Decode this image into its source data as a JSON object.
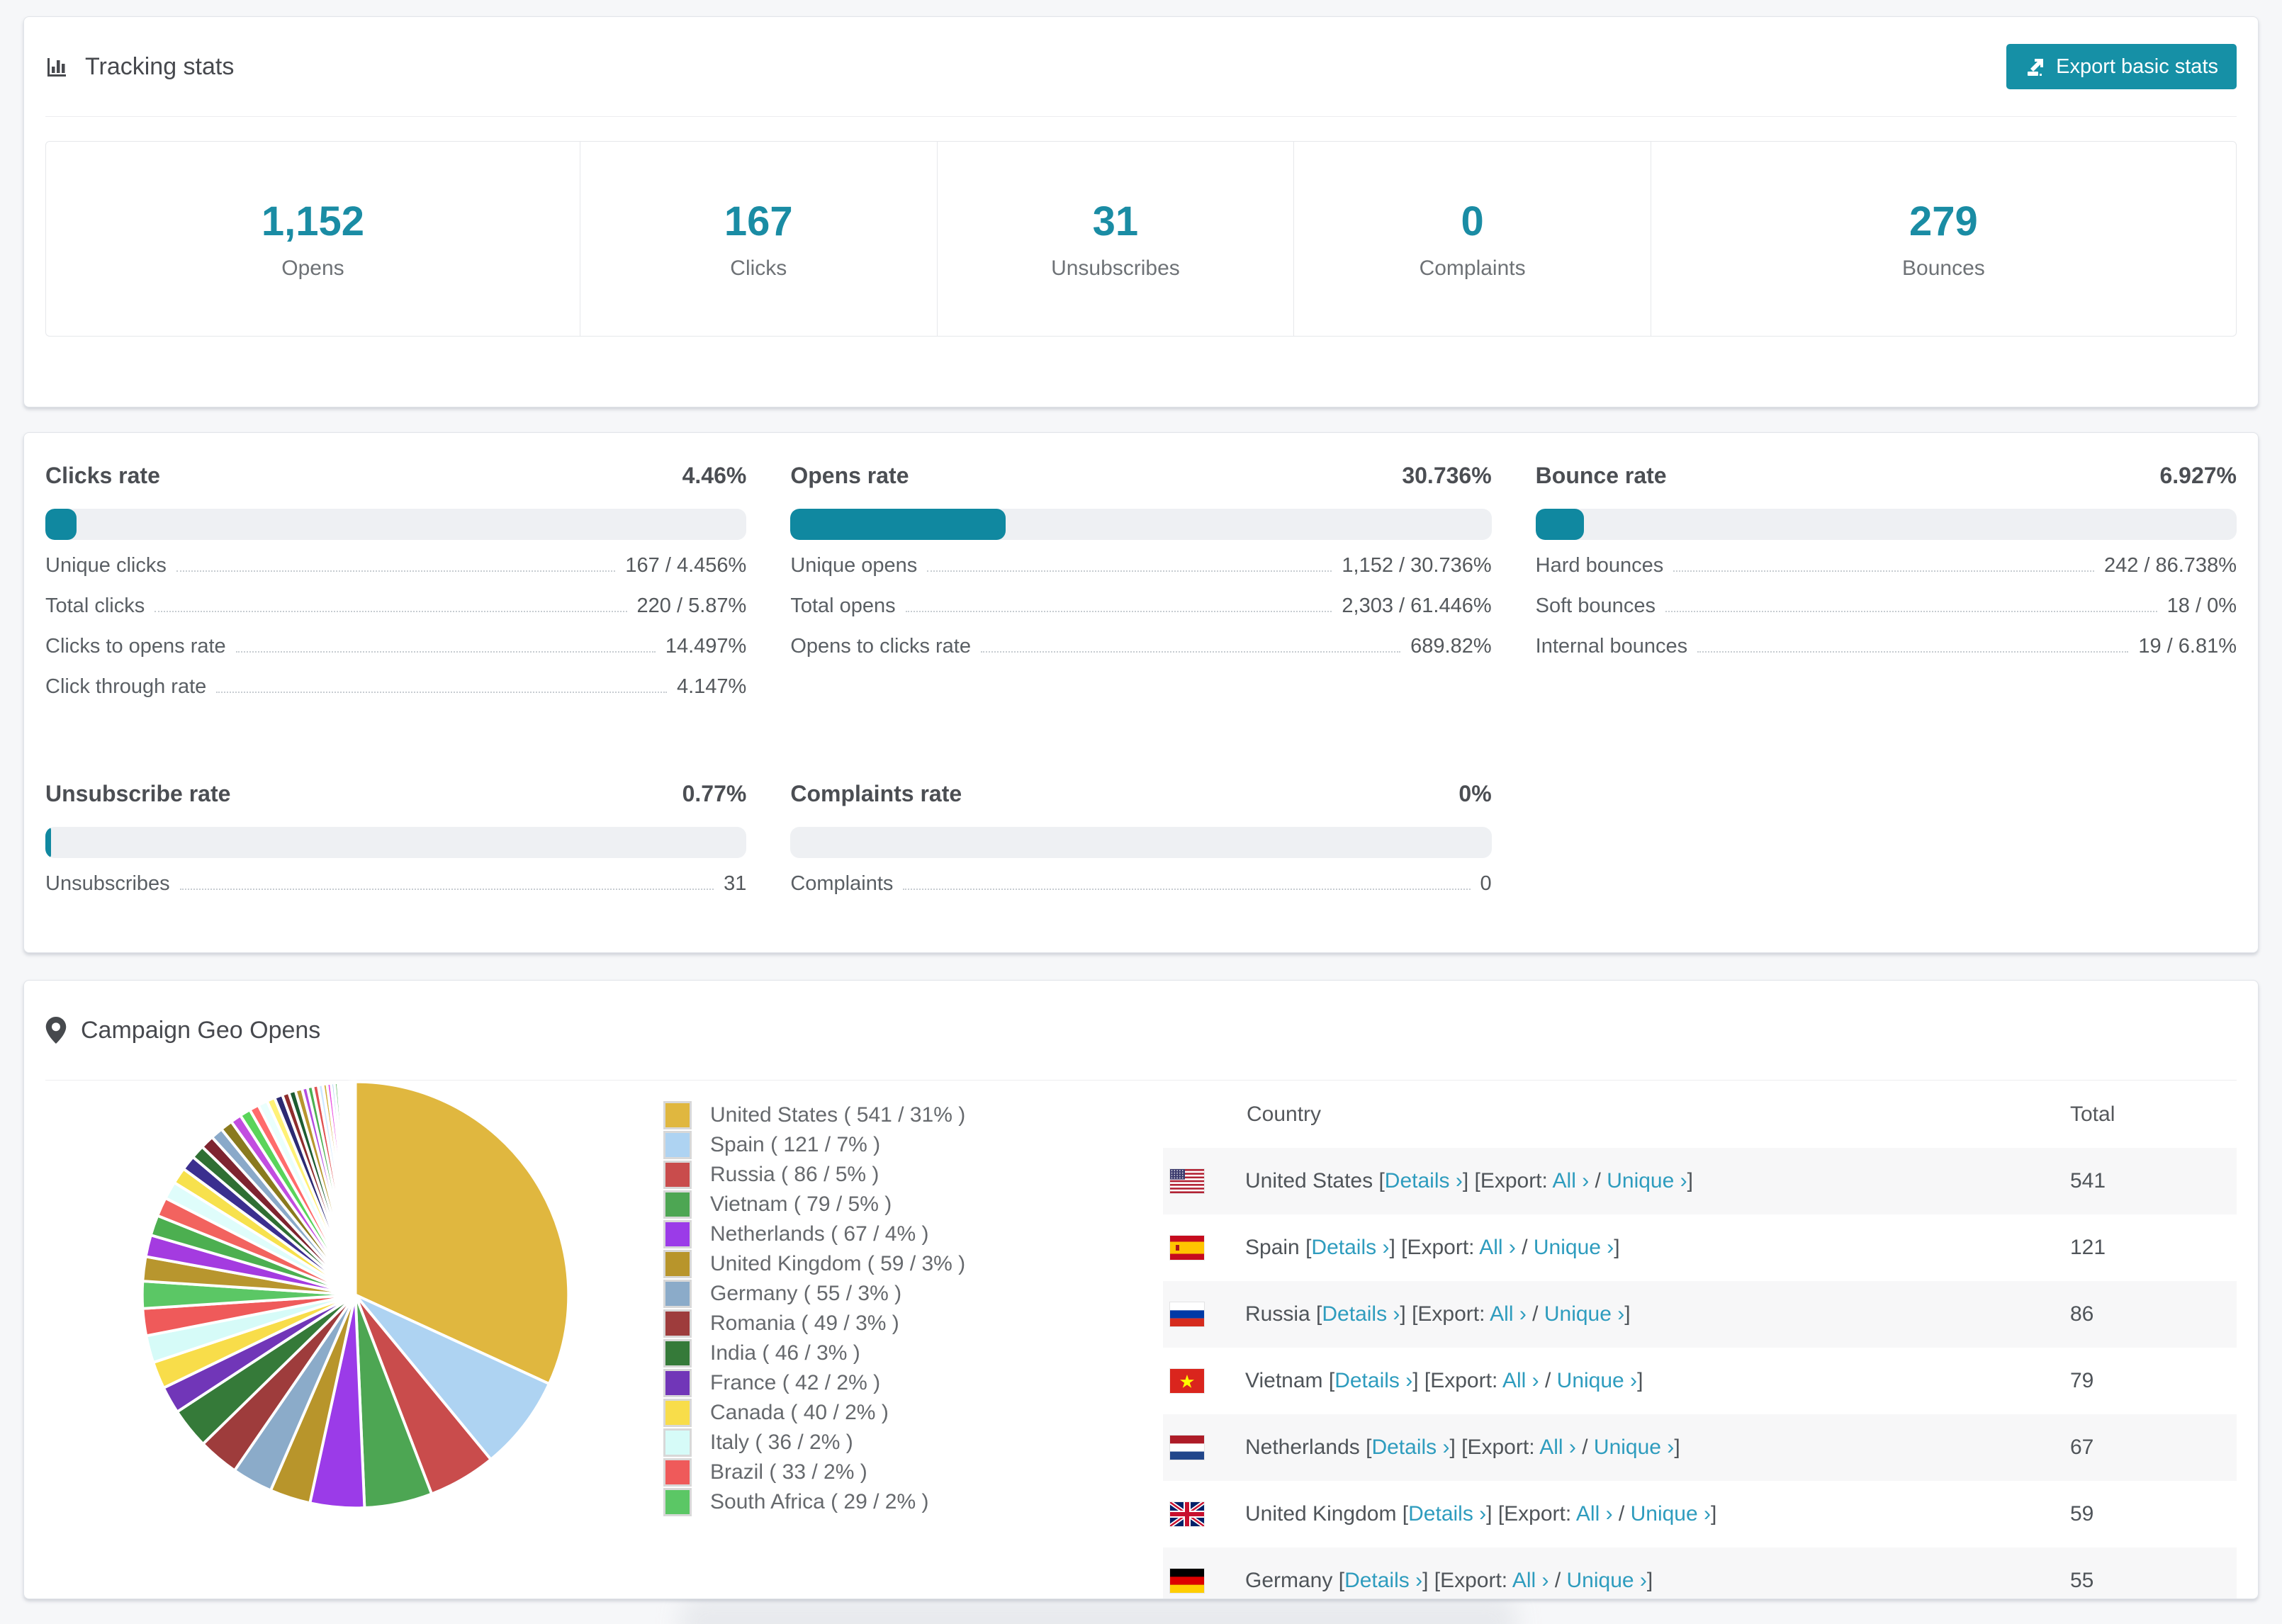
{
  "page": {
    "accent": "#1690a6",
    "link_color": "#2e9cbe"
  },
  "tracking": {
    "title": "Tracking stats",
    "export_button_label": "Export basic stats",
    "summary": [
      {
        "value": "1,152",
        "label": "Opens"
      },
      {
        "value": "167",
        "label": "Clicks"
      },
      {
        "value": "31",
        "label": "Unsubscribes"
      },
      {
        "value": "0",
        "label": "Complaints"
      },
      {
        "value": "279",
        "label": "Bounces"
      }
    ]
  },
  "rates": [
    {
      "title": "Clicks rate",
      "value": "4.46%",
      "percent": 4.46,
      "rows": [
        {
          "label": "Unique clicks",
          "value": "167 / 4.456%"
        },
        {
          "label": "Total clicks",
          "value": "220 / 5.87%"
        },
        {
          "label": "Clicks to opens rate",
          "value": "14.497%"
        },
        {
          "label": "Click through rate",
          "value": "4.147%"
        }
      ]
    },
    {
      "title": "Opens rate",
      "value": "30.736%",
      "percent": 30.736,
      "rows": [
        {
          "label": "Unique opens",
          "value": "1,152 / 30.736%"
        },
        {
          "label": "Total opens",
          "value": "2,303 / 61.446%"
        },
        {
          "label": "Opens to clicks rate",
          "value": "689.82%"
        }
      ]
    },
    {
      "title": "Bounce rate",
      "value": "6.927%",
      "percent": 6.927,
      "rows": [
        {
          "label": "Hard bounces",
          "value": "242 / 86.738%"
        },
        {
          "label": "Soft bounces",
          "value": "18 / 0%"
        },
        {
          "label": "Internal bounces",
          "value": "19 / 6.81%"
        }
      ]
    },
    {
      "title": "Unsubscribe rate",
      "value": "0.77%",
      "percent": 0.77,
      "rows": [
        {
          "label": "Unsubscribes",
          "value": "31"
        }
      ]
    },
    {
      "title": "Complaints rate",
      "value": "0%",
      "percent": 0,
      "rows": [
        {
          "label": "Complaints",
          "value": "0"
        }
      ]
    }
  ],
  "geo": {
    "title": "Campaign Geo Opens",
    "table": {
      "columns": [
        "Country",
        "Total"
      ],
      "link_labels": {
        "details": "Details",
        "export": "Export:",
        "all": "All",
        "unique": "Unique",
        "chevron": "›"
      },
      "rows": [
        {
          "country": "United States",
          "flag": "us",
          "total": "541"
        },
        {
          "country": "Spain",
          "flag": "es",
          "total": "121"
        },
        {
          "country": "Russia",
          "flag": "ru",
          "total": "86"
        },
        {
          "country": "Vietnam",
          "flag": "vn",
          "total": "79"
        },
        {
          "country": "Netherlands",
          "flag": "nl",
          "total": "67"
        },
        {
          "country": "United Kingdom",
          "flag": "gb",
          "total": "59"
        },
        {
          "country": "Germany",
          "flag": "de",
          "total": "55"
        }
      ]
    },
    "chart_data": {
      "type": "pie",
      "title": "Campaign Geo Opens",
      "legend_position": "right",
      "start_angle_deg": 0,
      "slices": [
        {
          "label": "United States",
          "count": 541,
          "pct": 31,
          "color": "#e0b73f"
        },
        {
          "label": "Spain",
          "count": 121,
          "pct": 7,
          "color": "#aed3f2"
        },
        {
          "label": "Russia",
          "count": 86,
          "pct": 5,
          "color": "#c94c4c"
        },
        {
          "label": "Vietnam",
          "count": 79,
          "pct": 5,
          "color": "#4da653"
        },
        {
          "label": "Netherlands",
          "count": 67,
          "pct": 4,
          "color": "#9b3be8"
        },
        {
          "label": "United Kingdom",
          "count": 59,
          "pct": 3,
          "color": "#b8952b"
        },
        {
          "label": "Germany",
          "count": 55,
          "pct": 3,
          "color": "#8babc9"
        },
        {
          "label": "Romania",
          "count": 49,
          "pct": 3,
          "color": "#9e3c3c"
        },
        {
          "label": "India",
          "count": 46,
          "pct": 3,
          "color": "#357a39"
        },
        {
          "label": "France",
          "count": 42,
          "pct": 2,
          "color": "#7136b8"
        },
        {
          "label": "Canada",
          "count": 40,
          "pct": 2,
          "color": "#f8dd4a"
        },
        {
          "label": "Italy",
          "count": 36,
          "pct": 2,
          "color": "#d6fbf8"
        },
        {
          "label": "Brazil",
          "count": 33,
          "pct": 2,
          "color": "#ef5a5a"
        },
        {
          "label": "South Africa",
          "count": 29,
          "pct": 2,
          "color": "#5bc765"
        }
      ],
      "other_slices_pct": [
        1.8,
        1.6,
        1.5,
        1.4,
        1.3,
        1.2,
        1.1,
        1.0,
        1.0,
        0.9,
        0.9,
        0.8,
        0.8,
        0.7,
        0.7,
        0.6,
        0.6,
        0.5,
        0.5,
        0.5,
        0.4,
        0.4,
        0.4,
        0.35,
        0.3,
        0.3,
        0.25,
        0.25,
        0.2,
        0.2,
        0.15,
        0.15,
        0.12,
        0.1,
        0.1,
        0.08,
        0.06,
        0.05,
        0.04,
        0.03
      ],
      "other_slices_colors": [
        "#b8962e",
        "#a43be0",
        "#4caf50",
        "#f2635f",
        "#dffdfb",
        "#f7e14d",
        "#3b2f8f",
        "#2f6f33",
        "#7e2430",
        "#8aa9c9",
        "#8a7a1e",
        "#c24de0",
        "#5ad45a",
        "#ff6b6b",
        "#eafffd",
        "#fff176",
        "#2c2a72",
        "#8f2d2d",
        "#1d5c31",
        "#b8962e",
        "#b44de0",
        "#4caf50",
        "#e05252",
        "#cfe9ff",
        "#d4af37",
        "#e94fe0",
        "#a8d1f0",
        "#66bb6a",
        "#ef5350",
        "#e1f5fe",
        "#ffe082",
        "#7e57c2",
        "#388e3c",
        "#b71c1c",
        "#90a4ae",
        "#827717",
        "#d500f9",
        "#69f0ae",
        "#ff8a80",
        "#b3e5fc"
      ]
    }
  }
}
